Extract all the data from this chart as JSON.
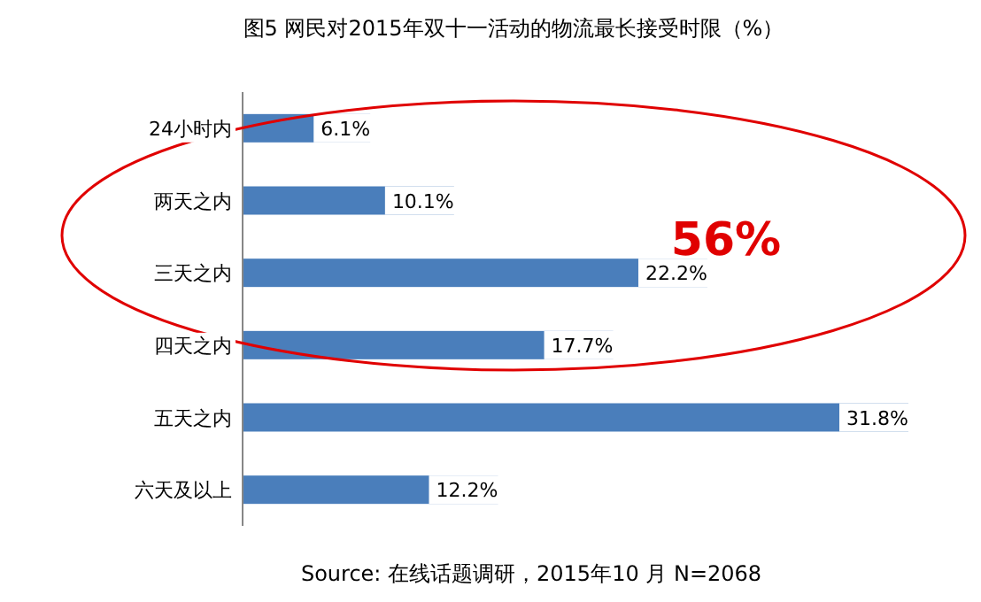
{
  "chart_data": {
    "type": "bar",
    "orientation": "horizontal",
    "title": "图5 网民对2015年双十一活动的物流最长接受时限（%）",
    "categories": [
      "24小时内",
      "两天之内",
      "三天之内",
      "四天之内",
      "五天之内",
      "六天及以上"
    ],
    "values": [
      6.1,
      10.1,
      22.2,
      17.7,
      31.8,
      12.2
    ],
    "value_labels": [
      "6.1%",
      "10.1%",
      "22.2%",
      "17.7%",
      "31.8%",
      "12.2%"
    ],
    "color": "#4a7ebb",
    "annotations": [
      "56%",
      "Source: 在线话题调研，2015年10 月 N=2068"
    ]
  }
}
